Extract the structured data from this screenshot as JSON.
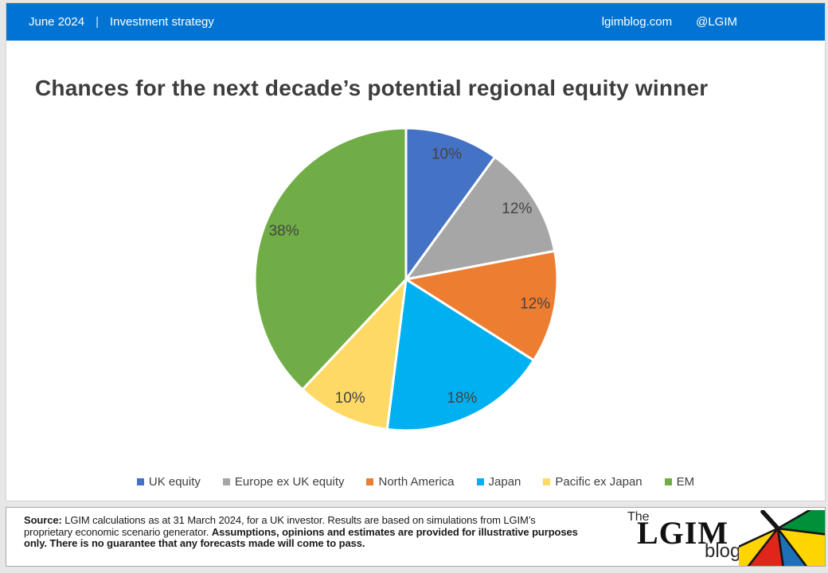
{
  "header": {
    "date": "June 2024",
    "separator": "|",
    "section": "Investment strategy",
    "site": "lgimblog.com",
    "handle": "@LGIM",
    "bar_color": "#0174D3"
  },
  "title": "Chances for the next decade’s potential regional equity winner",
  "chart_data": {
    "type": "pie",
    "title": "Chances for the next decade’s potential regional equity winner",
    "categories": [
      "UK equity",
      "Europe ex UK equity",
      "North America",
      "Japan",
      "Pacific ex Japan",
      "EM"
    ],
    "values": [
      10,
      12,
      12,
      18,
      10,
      38
    ],
    "data_labels": [
      "10%",
      "12%",
      "12%",
      "18%",
      "10%",
      "38%"
    ],
    "colors": [
      "#4472C4",
      "#A6A6A6",
      "#ED7D31",
      "#00B0F0",
      "#FFD966",
      "#70AD47"
    ],
    "start_angle_deg": 0,
    "direction": "clockwise",
    "legend_position": "bottom",
    "label_color": "#444444",
    "slice_border_color": "#FFFFFF"
  },
  "footer": {
    "source_bold_prefix": "Source:",
    "source_regular": " LGIM calculations as at 31 March 2024, for a UK investor. Results are based on simulations from LGIM’s proprietary economic scenario generator. ",
    "source_bold_tail": "Assumptions, opinions and estimates are provided for illustrative purposes only. There is no guarantee that any forecasts made will come to pass.",
    "logo": {
      "the": "The",
      "lgim": "LGIM",
      "blog": "blog",
      "umbrella_colors": [
        "#FFD500",
        "#E0251B",
        "#1D71B8",
        "#FFD500",
        "#00903A"
      ]
    }
  }
}
